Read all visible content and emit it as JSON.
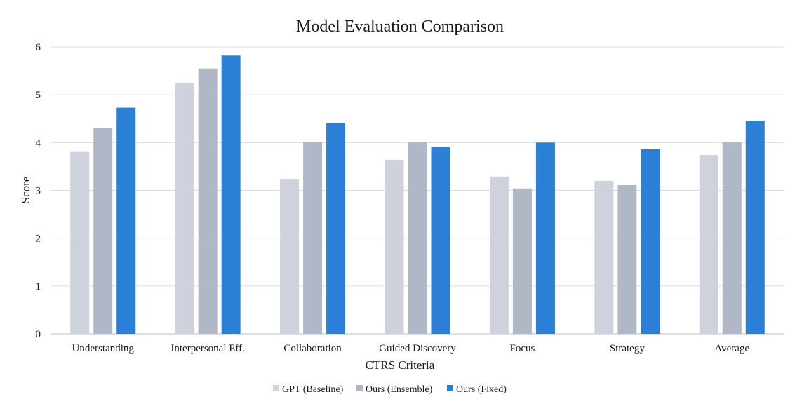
{
  "chart_data": {
    "type": "bar",
    "title": "Model Evaluation Comparison",
    "xlabel": "CTRS Criteria",
    "ylabel": "Score",
    "ylim": [
      0,
      6
    ],
    "yticks": [
      0,
      1,
      2,
      3,
      4,
      5,
      6
    ],
    "grid": true,
    "legend_position": "bottom",
    "categories": [
      "Understanding",
      "Interpersonal Eff.",
      "Collaboration",
      "Guided Discovery",
      "Focus",
      "Strategy",
      "Average"
    ],
    "series": [
      {
        "name": "GPT (Baseline)",
        "color": "#cdd2dd",
        "values": [
          3.82,
          5.24,
          3.24,
          3.64,
          3.29,
          3.2,
          3.74
        ]
      },
      {
        "name": "Ours (Ensemble)",
        "color": "#b0b8c7",
        "values": [
          4.31,
          5.55,
          4.02,
          4.01,
          3.04,
          3.11,
          4.01
        ]
      },
      {
        "name": "Ours (Fixed)",
        "color": "#2b7fd6",
        "values": [
          4.73,
          5.82,
          4.41,
          3.91,
          4.0,
          3.86,
          4.46
        ]
      }
    ]
  }
}
